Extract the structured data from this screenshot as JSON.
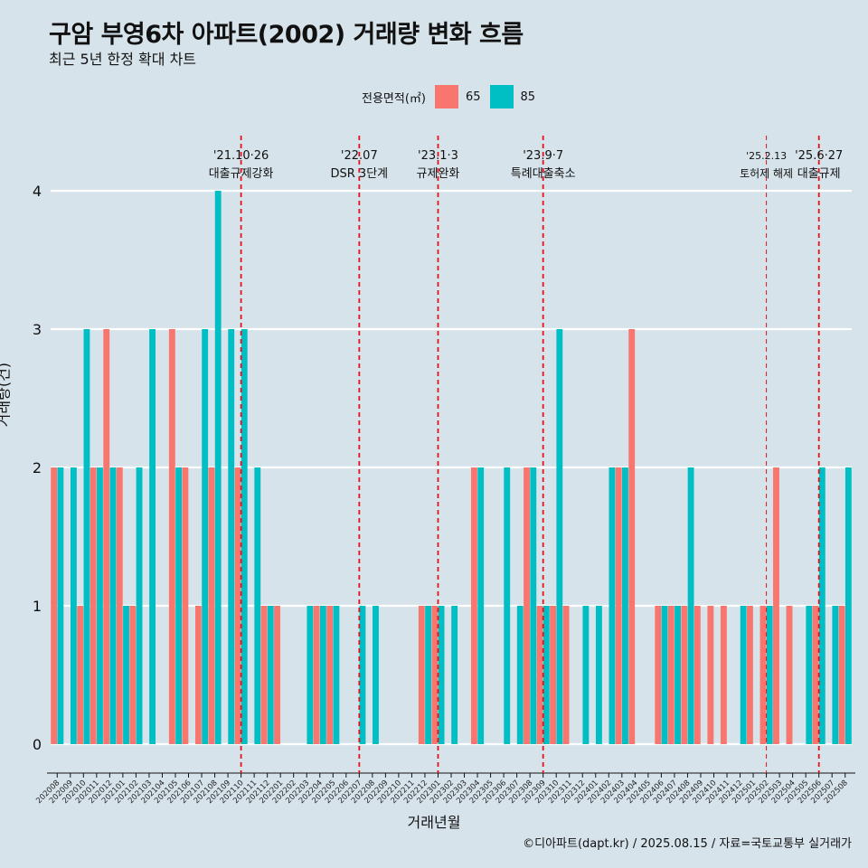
{
  "header": {
    "title": "구암 부영6차 아파트(2002) 거래량 변화 흐름",
    "subtitle": "최근 5년 한정 확대 차트"
  },
  "legend": {
    "title": "전용면적(㎡)",
    "items": [
      {
        "label": "65",
        "color": "#F8766D"
      },
      {
        "label": "85",
        "color": "#00BFC4"
      }
    ]
  },
  "axes": {
    "xlabel": "거래년월",
    "ylabel": "거래량(건)"
  },
  "caption": "©디아파트(dapt.kr) / 2025.08.15 / 자료=국토교통부 실거래가",
  "chart_data": {
    "type": "bar",
    "xlabel": "거래년월",
    "ylabel": "거래량(건)",
    "ylim": [
      0,
      4
    ],
    "yticks": [
      0,
      1,
      2,
      3,
      4
    ],
    "grid": true,
    "legend_position": "top",
    "categories": [
      "202008",
      "202009",
      "202010",
      "202011",
      "202012",
      "202101",
      "202102",
      "202103",
      "202104",
      "202105",
      "202106",
      "202107",
      "202108",
      "202109",
      "202110",
      "202111",
      "202112",
      "202201",
      "202202",
      "202203",
      "202204",
      "202205",
      "202206",
      "202207",
      "202208",
      "202209",
      "202210",
      "202211",
      "202212",
      "202301",
      "202302",
      "202303",
      "202304",
      "202305",
      "202306",
      "202307",
      "202308",
      "202309",
      "202310",
      "202311",
      "202312",
      "202401",
      "202402",
      "202403",
      "202404",
      "202405",
      "202406",
      "202407",
      "202408",
      "202409",
      "202410",
      "202411",
      "202412",
      "202501",
      "202502",
      "202503",
      "202504",
      "202505",
      "202506",
      "202507",
      "202508"
    ],
    "series": [
      {
        "name": "65",
        "color": "#F8766D",
        "values": [
          2,
          0,
          1,
          2,
          3,
          2,
          1,
          0,
          0,
          3,
          2,
          1,
          2,
          0,
          2,
          0,
          1,
          1,
          0,
          0,
          1,
          1,
          0,
          0,
          0,
          0,
          0,
          0,
          1,
          1,
          0,
          0,
          2,
          0,
          0,
          0,
          2,
          1,
          1,
          1,
          0,
          0,
          0,
          2,
          3,
          0,
          1,
          1,
          1,
          1,
          1,
          1,
          0,
          1,
          1,
          2,
          1,
          0,
          1,
          0,
          1
        ]
      },
      {
        "name": "85",
        "color": "#00BFC4",
        "values": [
          2,
          2,
          3,
          2,
          2,
          1,
          2,
          3,
          0,
          2,
          0,
          3,
          4,
          3,
          3,
          2,
          1,
          0,
          0,
          1,
          1,
          1,
          0,
          1,
          1,
          0,
          0,
          0,
          1,
          1,
          1,
          0,
          2,
          0,
          2,
          1,
          2,
          1,
          3,
          0,
          1,
          1,
          2,
          2,
          0,
          0,
          1,
          1,
          2,
          0,
          0,
          0,
          1,
          0,
          1,
          0,
          0,
          1,
          2,
          1,
          2
        ]
      }
    ],
    "annotations": [
      {
        "date": "'21.10·26",
        "label": "대출규제강화",
        "month": "202110"
      },
      {
        "date": "'22.07",
        "label": "DSR 3단계",
        "month": "202207"
      },
      {
        "date": "'23.1·3",
        "label": "규제완화",
        "month": "202301"
      },
      {
        "date": "'23.9·7",
        "label": "특례대출축소",
        "month": "202309"
      },
      {
        "date": "'25.2.13",
        "label": "토허제 해제",
        "month": "202502"
      },
      {
        "date": "'25.6·27",
        "label": "대출규제",
        "month": "202506"
      }
    ]
  }
}
